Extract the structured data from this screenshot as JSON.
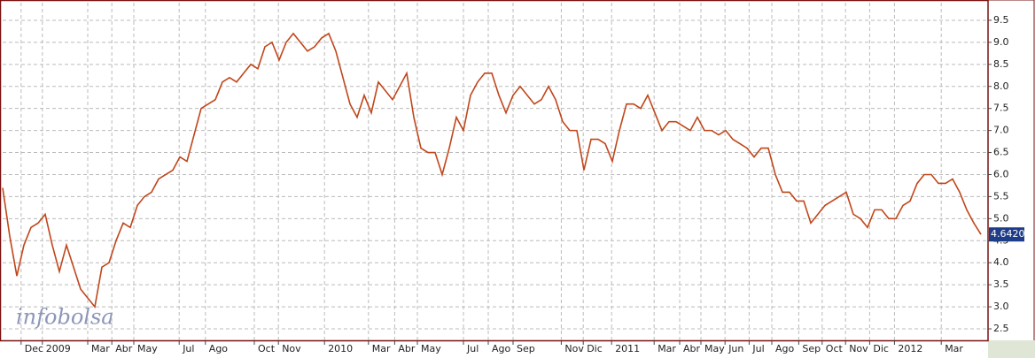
{
  "chart_data": {
    "type": "line",
    "watermark": "infobolsa",
    "color": "#c0461a",
    "grid": true,
    "values": [
      5.7,
      4.6,
      3.7,
      4.4,
      4.8,
      4.9,
      5.1,
      4.4,
      3.8,
      4.4,
      3.9,
      3.4,
      3.2,
      3.0,
      3.9,
      4.0,
      4.5,
      4.9,
      4.8,
      5.3,
      5.5,
      5.6,
      5.9,
      6.0,
      6.1,
      6.4,
      6.3,
      6.9,
      7.5,
      7.6,
      7.7,
      8.1,
      8.2,
      8.1,
      8.3,
      8.5,
      8.4,
      8.9,
      9.0,
      8.6,
      9.0,
      9.2,
      9.0,
      8.8,
      8.9,
      9.1,
      9.2,
      8.8,
      8.2,
      7.6,
      7.3,
      7.8,
      7.4,
      8.1,
      7.9,
      7.7,
      8.0,
      8.3,
      7.3,
      6.6,
      6.5,
      6.5,
      6.0,
      6.6,
      7.3,
      7.0,
      7.8,
      8.1,
      8.3,
      8.3,
      7.8,
      7.4,
      7.8,
      8.0,
      7.8,
      7.6,
      7.7,
      8.0,
      7.7,
      7.2,
      7.0,
      7.0,
      6.1,
      6.8,
      6.8,
      6.7,
      6.3,
      7.0,
      7.6,
      7.6,
      7.5,
      7.8,
      7.4,
      7.0,
      7.2,
      7.2,
      7.1,
      7.0,
      7.3,
      7.0,
      7.0,
      6.9,
      7.0,
      6.8,
      6.7,
      6.6,
      6.4,
      6.6,
      6.6,
      6.0,
      5.6,
      5.6,
      5.4,
      5.4,
      4.9,
      5.1,
      5.3,
      5.4,
      5.5,
      5.6,
      5.1,
      5.0,
      4.8,
      5.2,
      5.2,
      5.0,
      5.0,
      5.3,
      5.4,
      5.8,
      6.0,
      6.0,
      5.8,
      5.8,
      5.9,
      5.6,
      5.2,
      4.9,
      4.642
    ],
    "last_price": {
      "value": 4.642,
      "label": "4.6420"
    },
    "xlim": [
      0,
      139
    ],
    "xticks": [
      {
        "value": 2.6,
        "label": "Dec"
      },
      {
        "value": 5.6,
        "label": "2009"
      },
      {
        "value": 12,
        "label": "Mar"
      },
      {
        "value": 15.4,
        "label": "Abr"
      },
      {
        "value": 18.5,
        "label": "May"
      },
      {
        "value": 24.9,
        "label": "Jul"
      },
      {
        "value": 28.6,
        "label": "Ago"
      },
      {
        "value": 35.5,
        "label": "Oct"
      },
      {
        "value": 38.9,
        "label": "Nov"
      },
      {
        "value": 45.4,
        "label": "2010"
      },
      {
        "value": 51.6,
        "label": "Mar"
      },
      {
        "value": 55.3,
        "label": "Abr"
      },
      {
        "value": 58.5,
        "label": "May"
      },
      {
        "value": 65,
        "label": "Jul"
      },
      {
        "value": 68.5,
        "label": "Ago"
      },
      {
        "value": 72,
        "label": "Sep"
      },
      {
        "value": 78.8,
        "label": "Nov"
      },
      {
        "value": 81.9,
        "label": "Dic"
      },
      {
        "value": 85.9,
        "label": "2011"
      },
      {
        "value": 91.9,
        "label": "Mar"
      },
      {
        "value": 95.5,
        "label": "Abr"
      },
      {
        "value": 98.5,
        "label": "May"
      },
      {
        "value": 101.9,
        "label": "Jun"
      },
      {
        "value": 105.3,
        "label": "Jul"
      },
      {
        "value": 108.5,
        "label": "Ago"
      },
      {
        "value": 112.3,
        "label": "Sep"
      },
      {
        "value": 115.6,
        "label": "Oct"
      },
      {
        "value": 118.9,
        "label": "Nov"
      },
      {
        "value": 122.3,
        "label": "Dic"
      },
      {
        "value": 125.8,
        "label": "2012"
      },
      {
        "value": 132.4,
        "label": "Mar"
      }
    ],
    "ylim": [
      2.24,
      9.9
    ],
    "yticks": [
      2.5,
      {
        "value": 3,
        "label": "3.0"
      },
      3.5,
      {
        "value": 4,
        "label": "4.0"
      },
      4.5,
      {
        "value": 5,
        "label": "5.0"
      },
      5.5,
      {
        "value": 6,
        "label": "6.0"
      },
      6.5,
      {
        "value": 7,
        "label": "7.0"
      },
      7.5,
      {
        "value": 8,
        "label": "8.0"
      },
      8.5,
      {
        "value": 9,
        "label": "9.0"
      },
      9.5
    ]
  }
}
